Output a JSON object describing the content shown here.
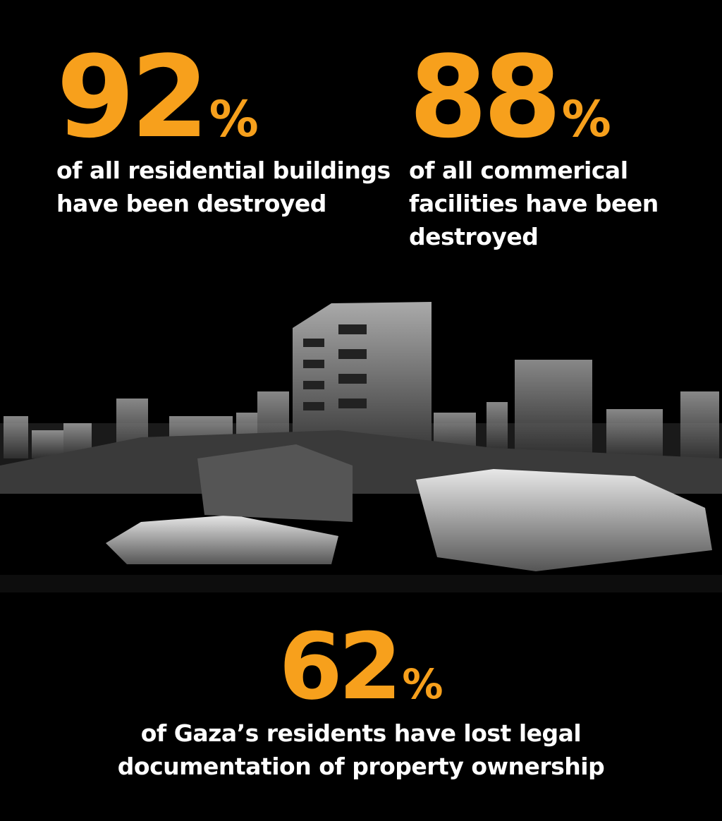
{
  "accent_color": "#F7A01C",
  "stats": [
    {
      "value": "92",
      "unit": "%",
      "line1": "of all residential buildings",
      "line2": "have been destroyed",
      "line3": ""
    },
    {
      "value": "88",
      "unit": "%",
      "line1": "of all commerical",
      "line2": "facilities have been",
      "line3": "destroyed"
    },
    {
      "value": "62",
      "unit": "%",
      "line1": "of Gaza’s residents have lost legal",
      "line2": "documentation of property ownership",
      "line3": ""
    }
  ],
  "illustration": "destroyed-buildings-rubble-grayscale"
}
